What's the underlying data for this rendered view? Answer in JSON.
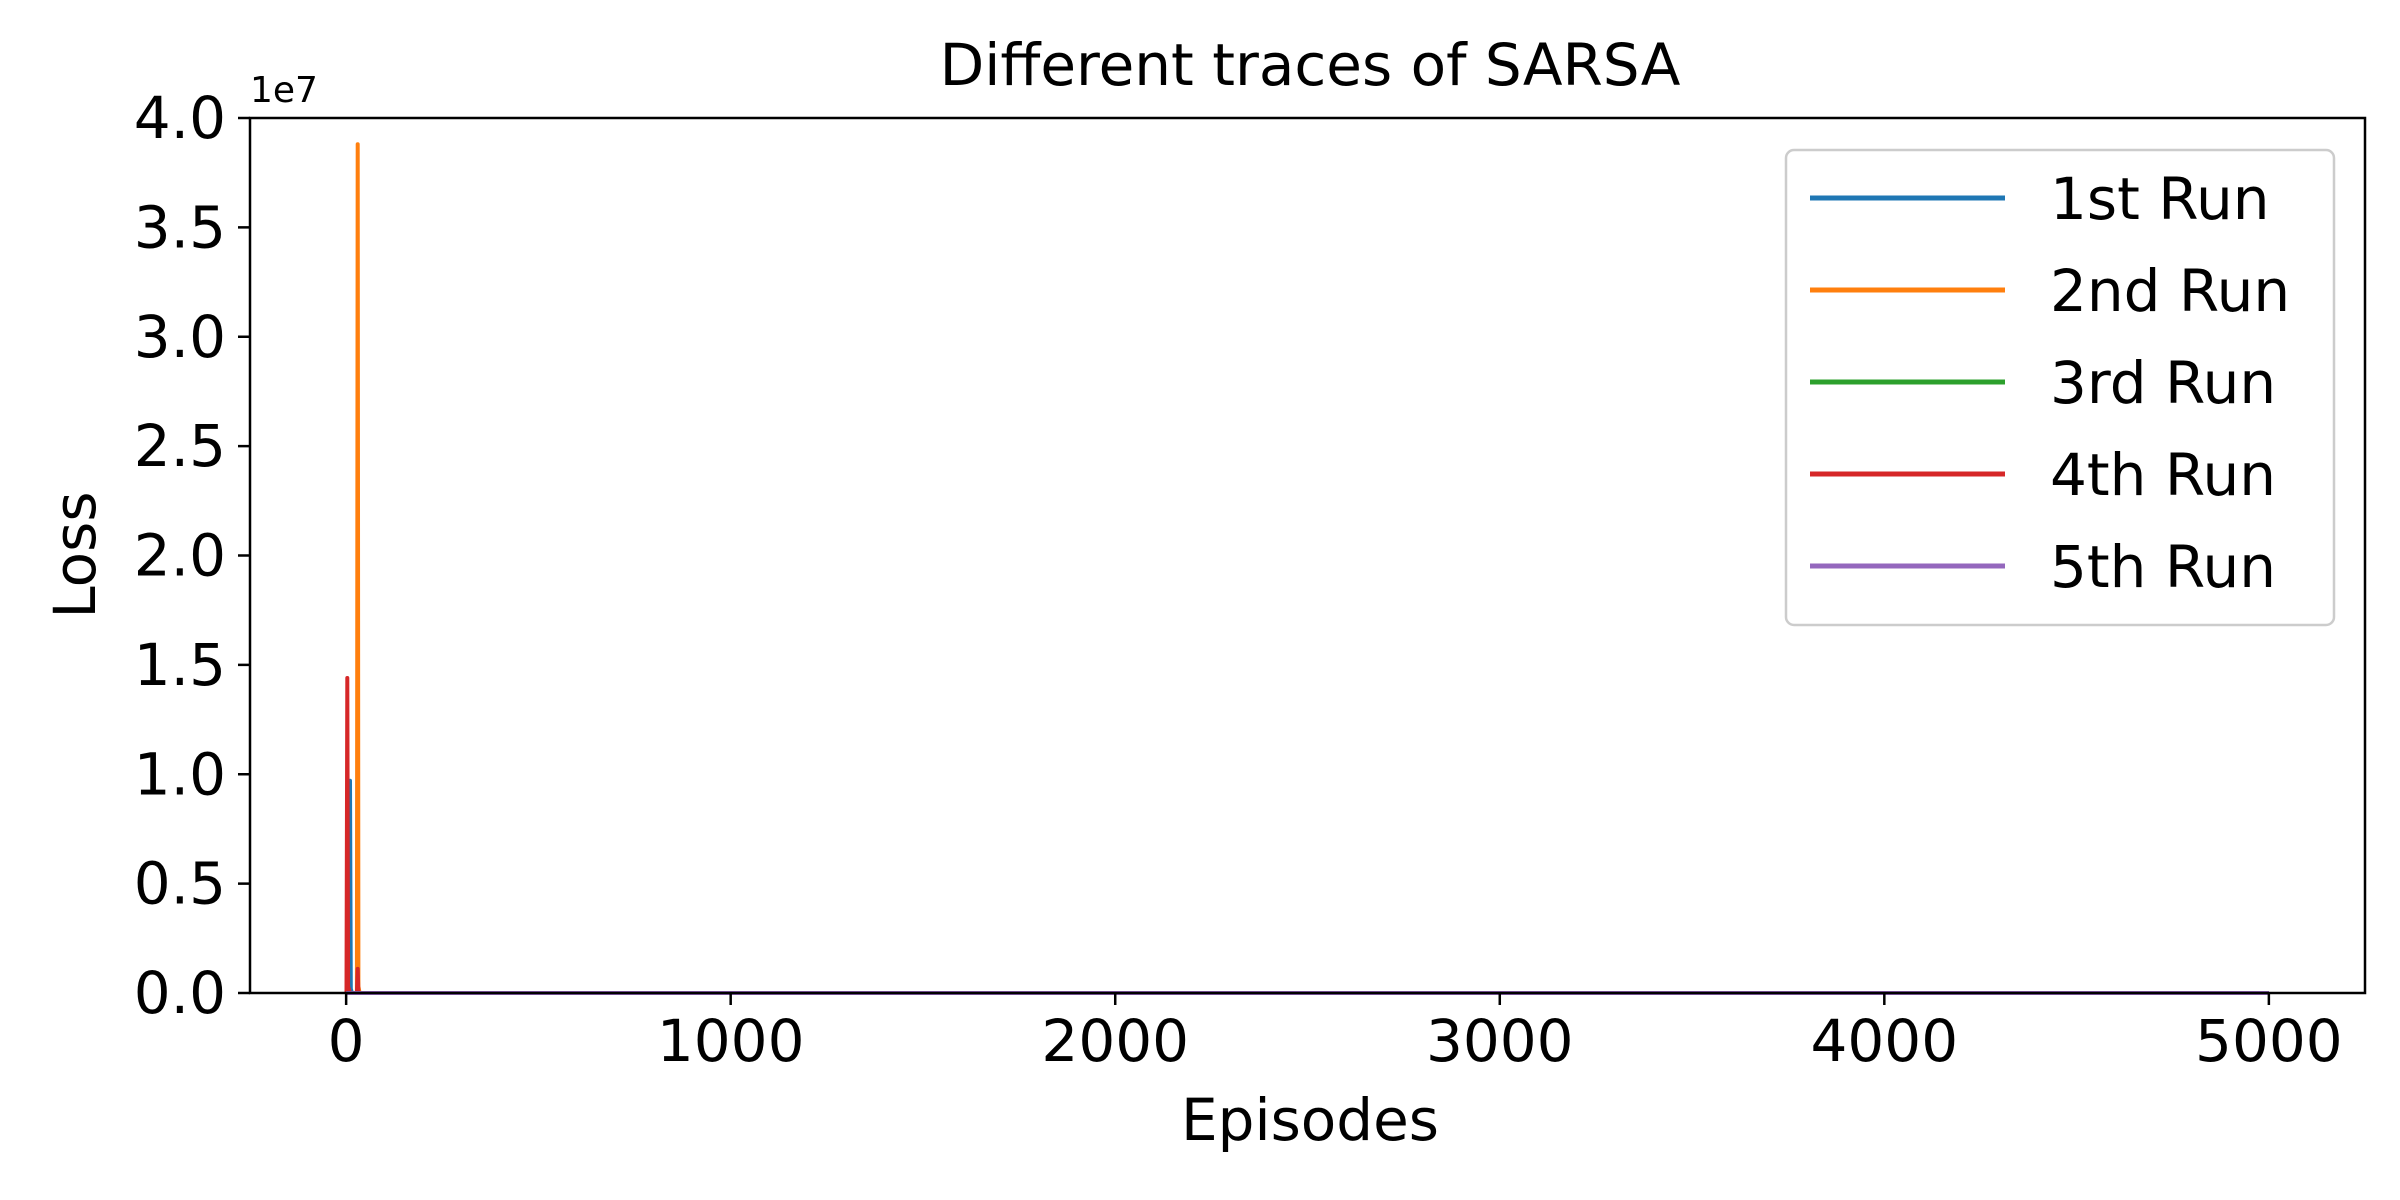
{
  "chart_data": {
    "type": "line",
    "title": "Different traces of SARSA",
    "xlabel": "Episodes",
    "ylabel": "Loss",
    "y_offset_label": "1e7",
    "xlim": [
      -250,
      5250
    ],
    "ylim": [
      0,
      40000000
    ],
    "x_ticks": [
      0,
      1000,
      2000,
      3000,
      4000,
      5000
    ],
    "x_tick_labels": [
      "0",
      "1000",
      "2000",
      "3000",
      "4000",
      "5000"
    ],
    "y_ticks": [
      0,
      5000000,
      10000000,
      15000000,
      20000000,
      25000000,
      30000000,
      35000000,
      40000000
    ],
    "y_tick_labels": [
      "0.0",
      "0.5",
      "1.0",
      "1.5",
      "2.0",
      "2.5",
      "3.0",
      "3.5",
      "4.0"
    ],
    "grid": false,
    "legend_position": "top-right",
    "series": [
      {
        "name": "1st Run",
        "color": "#1f77b4",
        "x": [
          0,
          8,
          10,
          12,
          15,
          20,
          25,
          30,
          40,
          5000
        ],
        "values": [
          0,
          0,
          9700000,
          200000,
          0,
          0,
          0,
          0,
          0,
          0
        ]
      },
      {
        "name": "2nd Run",
        "color": "#ff7f0e",
        "x": [
          0,
          28,
          30,
          32,
          35,
          40,
          45,
          5000
        ],
        "values": [
          0,
          0,
          38800000,
          300000,
          0,
          0,
          0,
          0
        ]
      },
      {
        "name": "3rd Run",
        "color": "#2ca02c",
        "x": [
          0,
          10,
          20,
          30,
          5000
        ],
        "values": [
          0,
          0,
          0,
          0,
          0
        ]
      },
      {
        "name": "4th Run",
        "color": "#d62728",
        "x": [
          0,
          1,
          3,
          5,
          10,
          20,
          28,
          30,
          32,
          40,
          5000
        ],
        "values": [
          0,
          0,
          14400000,
          300000,
          0,
          0,
          0,
          1100000,
          0,
          0,
          0
        ]
      },
      {
        "name": "5th Run",
        "color": "#9467bd",
        "x": [
          0,
          20,
          40,
          5000
        ],
        "values": [
          0,
          0,
          0,
          0
        ]
      }
    ]
  }
}
